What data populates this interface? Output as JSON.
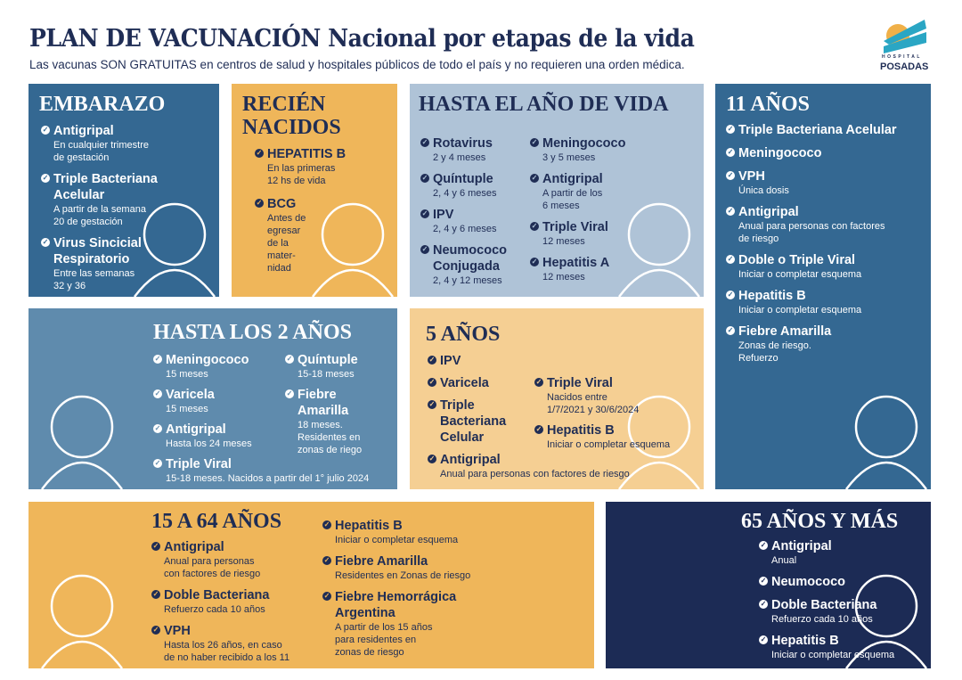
{
  "header": {
    "title": "PLAN DE VACUNACIÓN Nacional por etapas de la vida",
    "subtitle": "Las vacunas SON GRATUITAS en centros de salud y hospitales públicos de todo el país y no requieren una orden médica.",
    "logo_line1": "HOSPITAL",
    "logo_line2": "POSADAS"
  },
  "colors": {
    "navy": "#1f2d55",
    "blue": "#346892",
    "steel": "#5f8bad",
    "light_blue": "#afc3d7",
    "orange": "#efb65a",
    "peach": "#f5cf93",
    "dark_navy": "#1c2b55"
  },
  "panels": [
    {
      "id": "embarazo",
      "title": "EMBARAZO",
      "columns": [
        [
          {
            "name": "Antigripal",
            "sub": "En cualquier trimestre\nde gestación"
          },
          {
            "name": "Triple Bacteriana\nAcelular",
            "sub": "A partir de la semana\n20 de gestación"
          },
          {
            "name": "Virus Sincicial\nRespiratorio",
            "sub": "Entre las semanas\n32 y 36"
          }
        ]
      ]
    },
    {
      "id": "recien-nacidos",
      "title": "RECIÉN\nNACIDOS",
      "columns": [
        [
          {
            "name": "HEPATITIS B",
            "sub": "En las primeras\n12 hs de vida"
          },
          {
            "name": "BCG",
            "sub": "Antes de\negresar\nde la\nmater-\nnidad"
          }
        ]
      ]
    },
    {
      "id": "hasta-el-ano",
      "title": "HASTA EL AÑO DE VIDA",
      "columns": [
        [
          {
            "name": "Rotavirus",
            "sub": "2 y 4 meses"
          },
          {
            "name": "Quíntuple",
            "sub": "2, 4 y 6 meses"
          },
          {
            "name": "IPV",
            "sub": "2, 4 y 6 meses"
          },
          {
            "name": "Neumococo\nConjugada",
            "sub": "2, 4 y 12 meses"
          }
        ],
        [
          {
            "name": "Meningococo",
            "sub": "3 y 5 meses"
          },
          {
            "name": "Antigripal",
            "sub": "A partir de los\n6 meses"
          },
          {
            "name": "Triple Viral",
            "sub": "12 meses"
          },
          {
            "name": "Hepatitis A",
            "sub": "12 meses"
          }
        ]
      ]
    },
    {
      "id": "11-anos",
      "title": "11 AÑOS",
      "columns": [
        [
          {
            "name": "Triple Bacteriana Acelular",
            "sub": ""
          },
          {
            "name": "Meningococo",
            "sub": ""
          },
          {
            "name": "VPH",
            "sub": "Única dosis"
          },
          {
            "name": "Antigripal",
            "sub": "Anual para personas con factores\nde riesgo"
          },
          {
            "name": "Doble o Triple Viral",
            "sub": "Iniciar o completar esquema"
          },
          {
            "name": "Hepatitis B",
            "sub": "Iniciar o completar esquema"
          },
          {
            "name": "Fiebre Amarilla",
            "sub": "Zonas de riesgo.\nRefuerzo"
          }
        ]
      ]
    },
    {
      "id": "hasta-2-anos",
      "title": "HASTA LOS 2 AÑOS",
      "columns": [
        [
          {
            "name": "Meningococo",
            "sub": "15 meses"
          },
          {
            "name": "Varicela",
            "sub": "15 meses"
          },
          {
            "name": "Antigripal",
            "sub": "Hasta los 24 meses"
          },
          {
            "name": "Triple Viral",
            "sub": "15-18 meses. Nacidos a partir del 1° julio 2024"
          }
        ],
        [
          {
            "name": "Quíntuple",
            "sub": "15-18 meses"
          },
          {
            "name": "Fiebre\nAmarilla",
            "sub": "18 meses.\nResidentes en\nzonas de riego"
          }
        ]
      ]
    },
    {
      "id": "5-anos",
      "title": "5 AÑOS",
      "columns": [
        [
          {
            "name": "IPV",
            "sub": ""
          },
          {
            "name": "Varicela",
            "sub": ""
          },
          {
            "name": "Triple\nBacteriana\nCelular",
            "sub": ""
          },
          {
            "name": "Antigripal",
            "sub": "Anual para personas con factores de riesgo"
          }
        ],
        [
          {
            "name": "Triple Viral",
            "sub": "Nacidos entre\n1/7/2021 y 30/6/2024"
          },
          {
            "name": "Hepatitis B",
            "sub": "Iniciar o completar esquema"
          }
        ]
      ]
    },
    {
      "id": "15-a-64",
      "title": "15 A 64 AÑOS",
      "columns": [
        [
          {
            "name": "Antigripal",
            "sub": "Anual para personas\ncon factores de riesgo"
          },
          {
            "name": "Doble Bacteriana",
            "sub": "Refuerzo cada 10 años"
          },
          {
            "name": "VPH",
            "sub": "Hasta los 26 años, en caso\nde no haber recibido a los 11"
          }
        ],
        [
          {
            "name": "Hepatitis B",
            "sub": "Iniciar o completar esquema"
          },
          {
            "name": "Fiebre Amarilla",
            "sub": "Residentes en Zonas de riesgo"
          },
          {
            "name": "Fiebre Hemorrágica\nArgentina",
            "sub": "A partir de los 15 años\npara residentes en\nzonas de riesgo"
          }
        ]
      ]
    },
    {
      "id": "65-y-mas",
      "title": "65 AÑOS Y MÁS",
      "columns": [
        [
          {
            "name": "Antigripal",
            "sub": "Anual"
          },
          {
            "name": "Neumococo",
            "sub": ""
          },
          {
            "name": "Doble Bacteriana",
            "sub": "Refuerzo cada 10 años"
          },
          {
            "name": "Hepatitis B",
            "sub": "Iniciar o completar esquema"
          }
        ]
      ]
    }
  ]
}
